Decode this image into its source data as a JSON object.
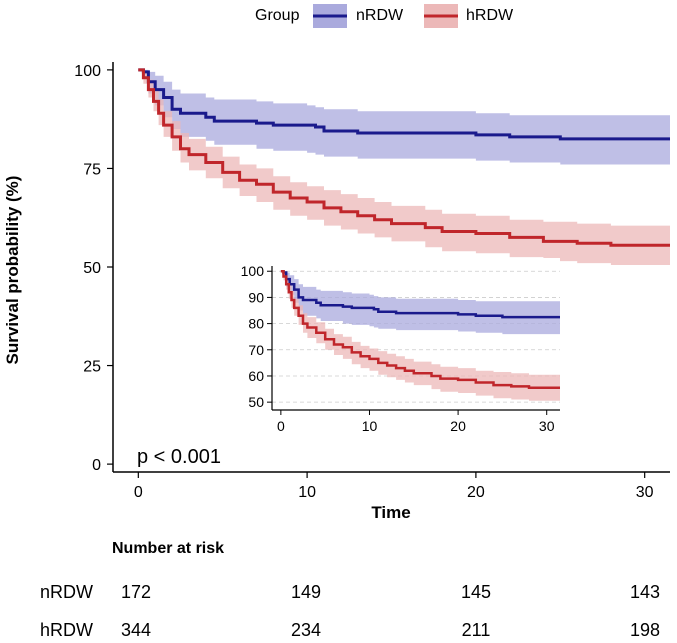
{
  "chart_data": {
    "type": "line",
    "subtype": "kaplan-meier",
    "legend": {
      "title": "Group",
      "placement": "top",
      "entries": [
        {
          "name": "nRDW",
          "color": "#1a1a8c",
          "band_color": "#aaaadd"
        },
        {
          "name": "hRDW",
          "color": "#c0262b",
          "band_color": "#ecb8b8"
        }
      ]
    },
    "xlabel": "Time",
    "ylabel": "Survival probability (%)",
    "xlim": [
      -1.5,
      31.5
    ],
    "ylim": [
      -2,
      102
    ],
    "xticks": [
      0,
      10,
      20,
      30
    ],
    "yticks": [
      0,
      25,
      50,
      75,
      100
    ],
    "annotation": "p < 0.001",
    "series": [
      {
        "name": "nRDW",
        "color": "#1a1a8c",
        "band_color": "#aaaadd",
        "points": [
          [
            0,
            100
          ],
          [
            0.3,
            99.5
          ],
          [
            0.6,
            97
          ],
          [
            1,
            95
          ],
          [
            1.5,
            93
          ],
          [
            2,
            90
          ],
          [
            2.5,
            89
          ],
          [
            4,
            88
          ],
          [
            4.5,
            87
          ],
          [
            7,
            86.5
          ],
          [
            8,
            86
          ],
          [
            10,
            86
          ],
          [
            10.5,
            85.5
          ],
          [
            11,
            84.5
          ],
          [
            13,
            84
          ],
          [
            20,
            83.5
          ],
          [
            22,
            83
          ],
          [
            25,
            82.5
          ],
          [
            31.5,
            82.5
          ]
        ],
        "lower": [
          [
            0,
            100
          ],
          [
            0.3,
            98
          ],
          [
            0.6,
            94
          ],
          [
            1,
            91
          ],
          [
            1.5,
            88
          ],
          [
            2,
            85
          ],
          [
            2.5,
            83
          ],
          [
            4,
            82
          ],
          [
            4.5,
            81
          ],
          [
            7,
            80
          ],
          [
            8,
            79.5
          ],
          [
            10,
            79
          ],
          [
            10.5,
            78.5
          ],
          [
            11,
            78
          ],
          [
            13,
            77.5
          ],
          [
            20,
            77
          ],
          [
            22,
            76.5
          ],
          [
            25,
            76
          ],
          [
            31.5,
            75
          ]
        ],
        "upper": [
          [
            0,
            100
          ],
          [
            0.3,
            100
          ],
          [
            0.6,
            99.5
          ],
          [
            1,
            98.5
          ],
          [
            1.5,
            97
          ],
          [
            2,
            95
          ],
          [
            2.5,
            94
          ],
          [
            4,
            93
          ],
          [
            4.5,
            92.5
          ],
          [
            7,
            92
          ],
          [
            8,
            91.5
          ],
          [
            10,
            91
          ],
          [
            10.5,
            90.5
          ],
          [
            11,
            90
          ],
          [
            13,
            89.5
          ],
          [
            20,
            89
          ],
          [
            22,
            88.5
          ],
          [
            25,
            88.5
          ],
          [
            31.5,
            88
          ]
        ]
      },
      {
        "name": "hRDW",
        "color": "#c0262b",
        "band_color": "#ecb8b8",
        "points": [
          [
            0,
            100
          ],
          [
            0.3,
            98
          ],
          [
            0.6,
            95
          ],
          [
            0.9,
            92
          ],
          [
            1.2,
            89
          ],
          [
            1.5,
            86
          ],
          [
            2,
            83
          ],
          [
            2.5,
            80
          ],
          [
            3,
            78.5
          ],
          [
            4,
            76.5
          ],
          [
            5,
            74
          ],
          [
            6,
            72
          ],
          [
            7,
            71
          ],
          [
            8,
            69
          ],
          [
            9,
            67.5
          ],
          [
            10,
            66.5
          ],
          [
            11,
            65
          ],
          [
            12,
            64
          ],
          [
            13,
            63
          ],
          [
            14,
            62
          ],
          [
            15,
            61
          ],
          [
            17,
            60
          ],
          [
            18,
            59
          ],
          [
            20,
            58.5
          ],
          [
            22,
            57.5
          ],
          [
            24,
            56.5
          ],
          [
            26,
            56
          ],
          [
            28,
            55.5
          ],
          [
            31.5,
            55.5
          ]
        ],
        "lower": [
          [
            0,
            100
          ],
          [
            0.3,
            96.5
          ],
          [
            0.6,
            93
          ],
          [
            0.9,
            89.5
          ],
          [
            1.2,
            86
          ],
          [
            1.5,
            83
          ],
          [
            2,
            79.5
          ],
          [
            2.5,
            76.5
          ],
          [
            3,
            74.5
          ],
          [
            4,
            72.5
          ],
          [
            5,
            70
          ],
          [
            6,
            68
          ],
          [
            7,
            66.5
          ],
          [
            8,
            64.5
          ],
          [
            9,
            63
          ],
          [
            10,
            62
          ],
          [
            11,
            60.5
          ],
          [
            12,
            59.5
          ],
          [
            13,
            58.5
          ],
          [
            14,
            57.5
          ],
          [
            15,
            56.5
          ],
          [
            17,
            55
          ],
          [
            18,
            54
          ],
          [
            20,
            53.5
          ],
          [
            22,
            52.5
          ],
          [
            24,
            51.5
          ],
          [
            26,
            51
          ],
          [
            28,
            50.5
          ],
          [
            31.5,
            50
          ]
        ],
        "upper": [
          [
            0,
            100
          ],
          [
            0.3,
            99.5
          ],
          [
            0.6,
            97.5
          ],
          [
            0.9,
            95
          ],
          [
            1.2,
            92.5
          ],
          [
            1.5,
            89.5
          ],
          [
            2,
            87
          ],
          [
            2.5,
            84
          ],
          [
            3,
            82.5
          ],
          [
            4,
            80.5
          ],
          [
            5,
            78
          ],
          [
            6,
            76
          ],
          [
            7,
            75
          ],
          [
            8,
            73
          ],
          [
            9,
            71.5
          ],
          [
            10,
            70.5
          ],
          [
            11,
            69.5
          ],
          [
            12,
            68.5
          ],
          [
            13,
            67.5
          ],
          [
            14,
            66.5
          ],
          [
            15,
            65.5
          ],
          [
            17,
            64.5
          ],
          [
            18,
            63.5
          ],
          [
            20,
            63
          ],
          [
            22,
            62
          ],
          [
            24,
            61.5
          ],
          [
            26,
            61
          ],
          [
            28,
            60.5
          ],
          [
            31.5,
            60.5
          ]
        ]
      }
    ],
    "inset": {
      "xlim": [
        -1,
        31.5
      ],
      "ylim": [
        47,
        102
      ],
      "xticks": [
        0,
        10,
        20,
        30
      ],
      "yticks": [
        50,
        60,
        70,
        80,
        90,
        100
      ],
      "grid": true
    }
  },
  "risk_table": {
    "title": "Number at risk",
    "times": [
      0,
      10,
      20,
      30
    ],
    "rows": [
      {
        "group": "nRDW",
        "values": [
          "172",
          "149",
          "145",
          "143"
        ]
      },
      {
        "group": "hRDW",
        "values": [
          "344",
          "234",
          "211",
          "198"
        ]
      }
    ]
  }
}
